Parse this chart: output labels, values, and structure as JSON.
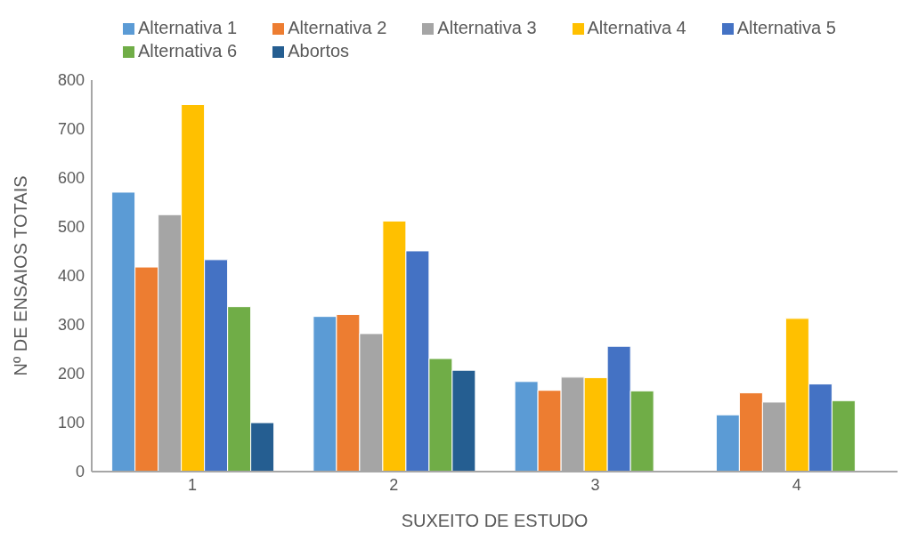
{
  "chart_data": {
    "type": "bar",
    "xlabel": "SUXEITO DE ESTUDO",
    "ylabel": "Nº DE ENSAIOS TOTAIS",
    "categories": [
      "1",
      "2",
      "3",
      "4"
    ],
    "series": [
      {
        "name": "Alternativa 1",
        "color": "#5b9bd5",
        "values": [
          571,
          317,
          184,
          116
        ]
      },
      {
        "name": "Alternativa 2",
        "color": "#ed7d31",
        "values": [
          418,
          321,
          166,
          161
        ]
      },
      {
        "name": "Alternativa 3",
        "color": "#a5a5a5",
        "values": [
          525,
          282,
          193,
          142
        ]
      },
      {
        "name": "Alternativa 4",
        "color": "#ffc000",
        "values": [
          750,
          512,
          192,
          313
        ]
      },
      {
        "name": "Alternativa 5",
        "color": "#4472c4",
        "values": [
          433,
          451,
          256,
          179
        ]
      },
      {
        "name": "Alternativa 6",
        "color": "#70ad47",
        "values": [
          337,
          231,
          165,
          145
        ]
      },
      {
        "name": "Abortos",
        "color": "#255e91",
        "values": [
          100,
          207,
          0,
          0
        ]
      }
    ],
    "ylim": [
      0,
      800
    ],
    "yticks": [
      0,
      100,
      200,
      300,
      400,
      500,
      600,
      700,
      800
    ],
    "grid": false,
    "legend": "top"
  }
}
